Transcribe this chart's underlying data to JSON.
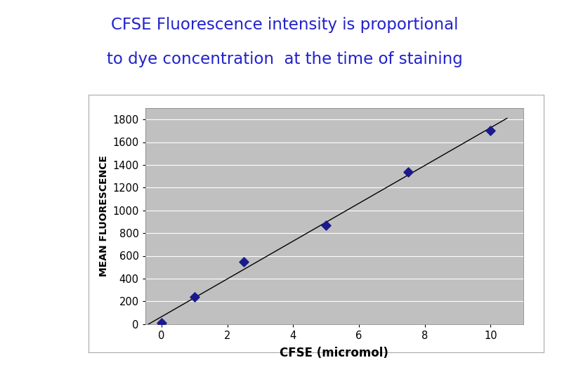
{
  "title_line1": "CFSE Fluorescence intensity is proportional",
  "title_line2": "to dye concentration  at the time of staining",
  "title_color": "#2222cc",
  "title_fontsize": 16.5,
  "xlabel": "CFSE (micromol)",
  "ylabel": "MEAN FLUORESCENCE",
  "xlabel_fontsize": 12,
  "ylabel_fontsize": 10,
  "x_data": [
    0,
    1,
    2.5,
    5,
    7.5,
    10
  ],
  "y_data": [
    10,
    240,
    550,
    870,
    1340,
    1700
  ],
  "marker_color": "#1a1a8c",
  "line_color": "#000000",
  "plot_bg_color": "#c0c0c0",
  "fig_bg_color": "#ffffff",
  "box_bg_color": "#ffffff",
  "xlim": [
    -0.5,
    11
  ],
  "ylim": [
    0,
    1900
  ],
  "xticks": [
    0,
    2,
    4,
    6,
    8,
    10
  ],
  "yticks": [
    0,
    200,
    400,
    600,
    800,
    1000,
    1200,
    1400,
    1600,
    1800
  ],
  "tick_fontsize": 10.5
}
